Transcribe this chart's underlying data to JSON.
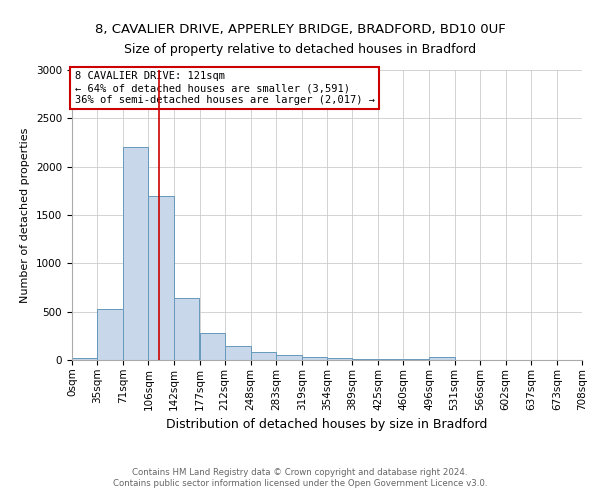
{
  "title1": "8, CAVALIER DRIVE, APPERLEY BRIDGE, BRADFORD, BD10 0UF",
  "title2": "Size of property relative to detached houses in Bradford",
  "xlabel": "Distribution of detached houses by size in Bradford",
  "ylabel": "Number of detached properties",
  "annotation_line1": "8 CAVALIER DRIVE: 121sqm",
  "annotation_line2": "← 64% of detached houses are smaller (3,591)",
  "annotation_line3": "36% of semi-detached houses are larger (2,017) →",
  "footer1": "Contains HM Land Registry data © Crown copyright and database right 2024.",
  "footer2": "Contains public sector information licensed under the Open Government Licence v3.0.",
  "bin_edges": [
    0,
    35,
    71,
    106,
    142,
    177,
    212,
    248,
    283,
    319,
    354,
    389,
    425,
    460,
    496,
    531,
    566,
    602,
    637,
    673,
    708
  ],
  "bar_heights": [
    25,
    525,
    2200,
    1700,
    640,
    280,
    145,
    80,
    50,
    30,
    20,
    15,
    15,
    10,
    30,
    5,
    5,
    5,
    5,
    5
  ],
  "bar_color": "#c8d8ea",
  "bar_edge_color": "#6699bb",
  "red_line_x": 121,
  "ylim": [
    0,
    3000
  ],
  "title1_fontsize": 9.5,
  "title2_fontsize": 9,
  "xlabel_fontsize": 9,
  "ylabel_fontsize": 8,
  "tick_fontsize": 7.5,
  "annotation_fontsize": 7.5,
  "annotation_box_color": "#ffffff",
  "annotation_box_edgecolor": "#cc0000",
  "red_line_color": "#cc0000",
  "background_color": "#ffffff",
  "grid_color": "#cccccc"
}
